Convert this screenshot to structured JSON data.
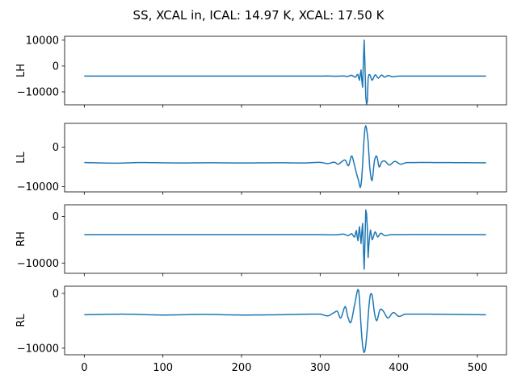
{
  "figure": {
    "title": "SS, XCAL in, ICAL: 14.97 K, XCAL: 17.50 K",
    "series_color": "#1f77b4"
  },
  "chart_data": [
    {
      "type": "line",
      "ylabel": "LH",
      "xlim": [
        -25,
        537
      ],
      "ylim": [
        -15000,
        11500
      ],
      "yticks": [
        {
          "value": 10000,
          "label": "10000"
        },
        {
          "value": 0,
          "label": "0"
        },
        {
          "value": -10000,
          "label": "−10000"
        }
      ],
      "xticks": [
        0,
        100,
        200,
        300,
        400,
        500
      ],
      "show_xtick_labels": false,
      "baseline": -3900,
      "trace_points": [
        [
          0,
          -3900
        ],
        [
          300,
          -3900
        ],
        [
          310,
          -3850
        ],
        [
          320,
          -3950
        ],
        [
          330,
          -3850
        ],
        [
          335,
          -4000
        ],
        [
          340,
          -3600
        ],
        [
          345,
          -4300
        ],
        [
          348,
          -3200
        ],
        [
          350,
          -5500
        ],
        [
          352,
          -1500
        ],
        [
          354,
          -8200
        ],
        [
          356,
          10000
        ],
        [
          358,
          -11800
        ],
        [
          360,
          -13800
        ],
        [
          361,
          -4800
        ],
        [
          363,
          -3300
        ],
        [
          366,
          -5500
        ],
        [
          370,
          -3400
        ],
        [
          374,
          -4700
        ],
        [
          378,
          -3500
        ],
        [
          382,
          -4300
        ],
        [
          386,
          -3700
        ],
        [
          392,
          -4100
        ],
        [
          400,
          -3900
        ],
        [
          511,
          -3900
        ]
      ]
    },
    {
      "type": "line",
      "ylabel": "LL",
      "xlim": [
        -25,
        537
      ],
      "ylim": [
        -11300,
        6000
      ],
      "yticks": [
        {
          "value": 0,
          "label": "0"
        },
        {
          "value": -10000,
          "label": "−10000"
        }
      ],
      "xticks": [
        0,
        100,
        200,
        300,
        400,
        500
      ],
      "show_xtick_labels": false,
      "baseline": -4000,
      "trace_points": [
        [
          0,
          -3900
        ],
        [
          40,
          -4050
        ],
        [
          70,
          -3900
        ],
        [
          120,
          -4000
        ],
        [
          160,
          -3950
        ],
        [
          200,
          -4000
        ],
        [
          250,
          -3950
        ],
        [
          280,
          -4000
        ],
        [
          300,
          -3850
        ],
        [
          310,
          -4150
        ],
        [
          318,
          -3800
        ],
        [
          323,
          -4300
        ],
        [
          328,
          -3600
        ],
        [
          332,
          -3300
        ],
        [
          336,
          -4700
        ],
        [
          340,
          -2200
        ],
        [
          343,
          -4000
        ],
        [
          346,
          -6500
        ],
        [
          349,
          -8500
        ],
        [
          351,
          -10200
        ],
        [
          353,
          -7500
        ],
        [
          356,
          2500
        ],
        [
          358,
          5400
        ],
        [
          361,
          1500
        ],
        [
          363,
          -5000
        ],
        [
          366,
          -8500
        ],
        [
          369,
          -3500
        ],
        [
          372,
          -2300
        ],
        [
          375,
          -5000
        ],
        [
          378,
          -3800
        ],
        [
          382,
          -3500
        ],
        [
          388,
          -4500
        ],
        [
          395,
          -3600
        ],
        [
          402,
          -4300
        ],
        [
          410,
          -3900
        ],
        [
          511,
          -3950
        ]
      ]
    },
    {
      "type": "line",
      "ylabel": "RH",
      "xlim": [
        -25,
        537
      ],
      "ylim": [
        -12200,
        2500
      ],
      "yticks": [
        {
          "value": 0,
          "label": "0"
        },
        {
          "value": -10000,
          "label": "−10000"
        }
      ],
      "xticks": [
        0,
        100,
        200,
        300,
        400,
        500
      ],
      "show_xtick_labels": false,
      "baseline": -3900,
      "trace_points": [
        [
          0,
          -3900
        ],
        [
          300,
          -3900
        ],
        [
          320,
          -3950
        ],
        [
          330,
          -3800
        ],
        [
          336,
          -4100
        ],
        [
          340,
          -3700
        ],
        [
          344,
          -4400
        ],
        [
          346,
          -3000
        ],
        [
          348,
          -5200
        ],
        [
          350,
          -2200
        ],
        [
          352,
          -5800
        ],
        [
          354,
          -1500
        ],
        [
          356,
          -11300
        ],
        [
          358,
          1400
        ],
        [
          360,
          -2500
        ],
        [
          361,
          -8800
        ],
        [
          362,
          -6000
        ],
        [
          364,
          -2900
        ],
        [
          366,
          -5000
        ],
        [
          370,
          -3300
        ],
        [
          373,
          -4400
        ],
        [
          377,
          -3600
        ],
        [
          382,
          -4100
        ],
        [
          390,
          -3900
        ],
        [
          511,
          -3900
        ]
      ]
    },
    {
      "type": "line",
      "ylabel": "RL",
      "xlim": [
        -25,
        537
      ],
      "ylim": [
        -11200,
        1300
      ],
      "yticks": [
        {
          "value": 0,
          "label": "0"
        },
        {
          "value": -10000,
          "label": "−10000"
        }
      ],
      "xticks": [
        0,
        100,
        200,
        300,
        400,
        500
      ],
      "xtick_labels": [
        "0",
        "100",
        "200",
        "300",
        "400",
        "500"
      ],
      "show_xtick_labels": true,
      "baseline": -3900,
      "trace_points": [
        [
          0,
          -3900
        ],
        [
          50,
          -3800
        ],
        [
          100,
          -3950
        ],
        [
          150,
          -3850
        ],
        [
          200,
          -3950
        ],
        [
          250,
          -3900
        ],
        [
          300,
          -3800
        ],
        [
          310,
          -4100
        ],
        [
          318,
          -3500
        ],
        [
          322,
          -3300
        ],
        [
          326,
          -4500
        ],
        [
          332,
          -2400
        ],
        [
          335,
          -4200
        ],
        [
          339,
          -5300
        ],
        [
          344,
          -2000
        ],
        [
          349,
          500
        ],
        [
          353,
          -8000
        ],
        [
          356,
          -10800
        ],
        [
          359,
          -8000
        ],
        [
          363,
          -1000
        ],
        [
          366,
          -300
        ],
        [
          369,
          -3500
        ],
        [
          372,
          -5000
        ],
        [
          376,
          -3000
        ],
        [
          380,
          -3200
        ],
        [
          386,
          -4500
        ],
        [
          393,
          -3500
        ],
        [
          400,
          -4200
        ],
        [
          408,
          -3800
        ],
        [
          511,
          -3900
        ]
      ]
    }
  ]
}
